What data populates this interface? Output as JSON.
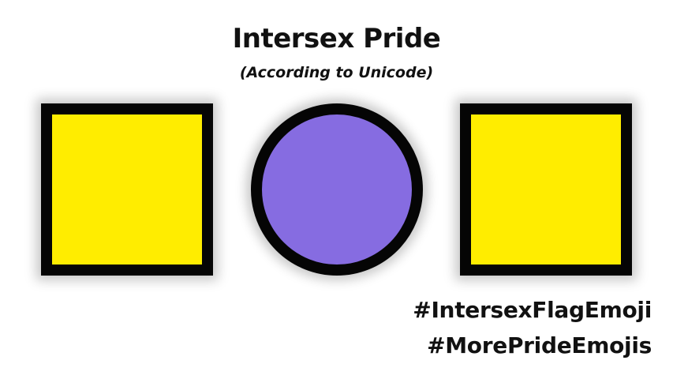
{
  "title": "Intersex Pride",
  "subtitle": "(According to Unicode)",
  "hashtags": [
    "#IntersexFlagEmoji",
    "#MorePrideEmojis"
  ],
  "flag": {
    "left_square_color": "#FFED00",
    "circle_color": "#866CE1",
    "right_square_color": "#FFED00",
    "outline_color": "#050505"
  }
}
